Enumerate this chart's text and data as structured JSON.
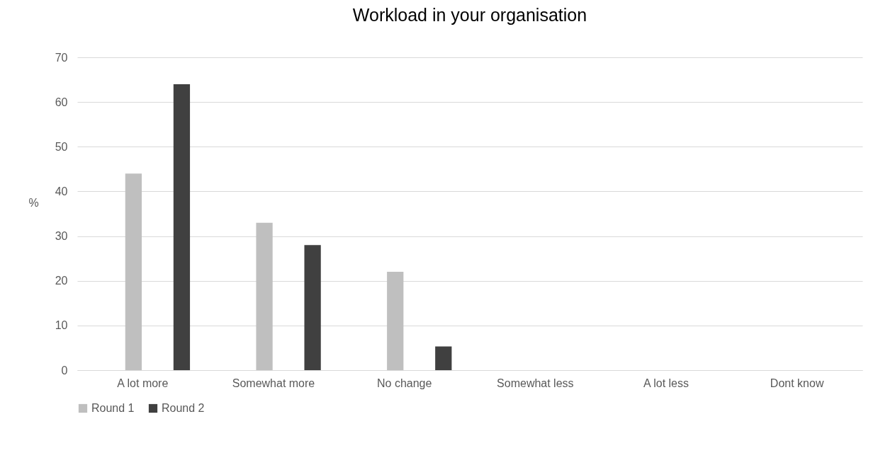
{
  "chart_data": {
    "type": "bar",
    "title": "Workload in your organisation",
    "ylabel": "%",
    "categories": [
      "A lot more",
      "Somewhat more",
      "No change",
      "Somewhat less",
      "A lot less",
      "Dont know"
    ],
    "series": [
      {
        "name": "Round 1",
        "color": "#bfbfbf",
        "values": [
          44,
          33,
          22,
          0,
          0,
          0
        ]
      },
      {
        "name": "Round 2",
        "color": "#404040",
        "values": [
          64,
          28,
          5.3,
          0,
          0,
          0
        ]
      }
    ],
    "ylim": [
      0,
      70
    ],
    "yticks": [
      0,
      10,
      20,
      30,
      40,
      50,
      60,
      70
    ],
    "grid": "y",
    "legend": "bottom"
  }
}
